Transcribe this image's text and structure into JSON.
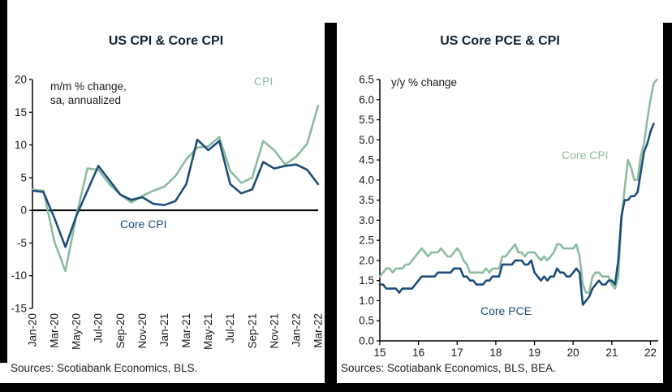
{
  "colors": {
    "green": "#8cbca0",
    "navy": "#1d4e79",
    "axis": "#000000",
    "tick_text": "#1a1a1a"
  },
  "chart_data": [
    {
      "type": "line",
      "title": "US CPI & Core CPI",
      "annotation_lines": [
        "m/m % change,",
        "sa, annualized"
      ],
      "source": "Sources: Scotiabank Economics, BLS.",
      "ylim": [
        -15,
        20
      ],
      "yticks": [
        20,
        15,
        10,
        5,
        0,
        -5,
        -10,
        -15
      ],
      "ytick_labels": [
        "20",
        "15",
        "10",
        "5",
        "0",
        "-5",
        "-10",
        "-15"
      ],
      "zero_line": true,
      "categories": [
        "Jan-20",
        "Feb-20",
        "Mar-20",
        "Apr-20",
        "May-20",
        "Jun-20",
        "Jul-20",
        "Aug-20",
        "Sep-20",
        "Oct-20",
        "Nov-20",
        "Dec-20",
        "Jan-21",
        "Feb-21",
        "Mar-21",
        "Apr-21",
        "May-21",
        "Jun-21",
        "Jul-21",
        "Aug-21",
        "Sep-21",
        "Oct-21",
        "Nov-21",
        "Dec-21",
        "Jan-22",
        "Feb-22",
        "Mar-22"
      ],
      "x_tick_every": 2,
      "x_tick_labels": [
        "Jan-20",
        "Mar-20",
        "May-20",
        "Jul-20",
        "Sep-20",
        "Nov-20",
        "Jan-21",
        "Mar-21",
        "May-21",
        "Jul-21",
        "Sep-21",
        "Nov-21",
        "Jan-22",
        "Mar-22"
      ],
      "series": [
        {
          "name": "CPI",
          "color_key": "green",
          "values": [
            3.2,
            3.0,
            -4.8,
            -9.3,
            -0.8,
            6.4,
            6.2,
            4.0,
            2.4,
            1.2,
            2.2,
            3.0,
            3.6,
            5.2,
            7.8,
            9.6,
            9.8,
            11.2,
            6.0,
            4.2,
            5.0,
            10.6,
            9.2,
            7.0,
            8.2,
            10.2,
            16.0
          ]
        },
        {
          "name": "Core CPI",
          "color_key": "navy",
          "values": [
            3.0,
            2.8,
            -1.2,
            -5.6,
            -0.8,
            3.0,
            6.8,
            4.6,
            2.4,
            1.6,
            2.0,
            1.0,
            0.8,
            1.4,
            4.0,
            10.8,
            9.2,
            10.6,
            4.0,
            2.6,
            3.2,
            7.4,
            6.4,
            6.8,
            7.0,
            6.2,
            4.0
          ]
        }
      ]
    },
    {
      "type": "line",
      "title": "US Core PCE & CPI",
      "annotation_lines": [
        "y/y % change"
      ],
      "source": "Sources: Scotiabank Economics, BLS, BEA.",
      "ylim": [
        0,
        6.5
      ],
      "yticks": [
        6.5,
        6.0,
        5.5,
        5.0,
        4.5,
        4.0,
        3.5,
        3.0,
        2.5,
        2.0,
        1.5,
        1.0,
        0.5,
        0.0
      ],
      "ytick_labels": [
        "6.5",
        "6.0",
        "5.5",
        "5.0",
        "4.5",
        "4.0",
        "3.5",
        "3.0",
        "2.5",
        "2.0",
        "1.5",
        "1.0",
        "0.5",
        "0.0"
      ],
      "zero_line": false,
      "x_start": 2015,
      "x_step": 0.0833333,
      "x_range": [
        2015,
        2022.2
      ],
      "x_tick_values": [
        2015,
        2016,
        2017,
        2018,
        2019,
        2020,
        2021,
        2022
      ],
      "x_tick_labels": [
        "15",
        "16",
        "17",
        "18",
        "19",
        "20",
        "21",
        "22"
      ],
      "series": [
        {
          "name": "Core CPI",
          "color_key": "green",
          "values": [
            1.6,
            1.7,
            1.8,
            1.8,
            1.7,
            1.8,
            1.8,
            1.8,
            1.9,
            1.9,
            2.0,
            2.1,
            2.2,
            2.3,
            2.2,
            2.1,
            2.2,
            2.2,
            2.2,
            2.3,
            2.2,
            2.1,
            2.1,
            2.2,
            2.3,
            2.2,
            2.0,
            1.9,
            1.7,
            1.7,
            1.7,
            1.7,
            1.7,
            1.8,
            1.7,
            1.8,
            1.8,
            1.8,
            2.1,
            2.1,
            2.2,
            2.3,
            2.4,
            2.2,
            2.2,
            2.1,
            2.2,
            2.2,
            2.2,
            2.1,
            2.0,
            2.1,
            2.0,
            2.1,
            2.2,
            2.4,
            2.4,
            2.3,
            2.3,
            2.3,
            2.3,
            2.4,
            2.1,
            1.4,
            1.2,
            1.2,
            1.6,
            1.7,
            1.7,
            1.6,
            1.6,
            1.6,
            1.4,
            1.3,
            1.6,
            3.0,
            3.8,
            4.5,
            4.3,
            4.0,
            4.0,
            4.6,
            4.9,
            5.5,
            6.0,
            6.4,
            6.5
          ]
        },
        {
          "name": "Core PCE",
          "color_key": "navy",
          "values": [
            1.4,
            1.4,
            1.3,
            1.3,
            1.3,
            1.3,
            1.2,
            1.3,
            1.3,
            1.3,
            1.3,
            1.4,
            1.5,
            1.6,
            1.6,
            1.6,
            1.6,
            1.6,
            1.7,
            1.7,
            1.7,
            1.7,
            1.7,
            1.8,
            1.8,
            1.8,
            1.6,
            1.6,
            1.5,
            1.5,
            1.4,
            1.4,
            1.4,
            1.5,
            1.5,
            1.6,
            1.6,
            1.6,
            1.9,
            1.9,
            1.9,
            1.9,
            2.0,
            2.0,
            2.0,
            1.9,
            1.9,
            2.0,
            1.7,
            1.6,
            1.5,
            1.6,
            1.5,
            1.6,
            1.6,
            1.8,
            1.7,
            1.7,
            1.6,
            1.6,
            1.7,
            1.8,
            1.7,
            0.9,
            1.0,
            1.1,
            1.3,
            1.4,
            1.5,
            1.4,
            1.4,
            1.5,
            1.5,
            1.4,
            2.0,
            3.1,
            3.5,
            3.5,
            3.6,
            3.6,
            3.7,
            4.2,
            4.7,
            4.9,
            5.2,
            5.4,
            null
          ]
        }
      ]
    }
  ]
}
